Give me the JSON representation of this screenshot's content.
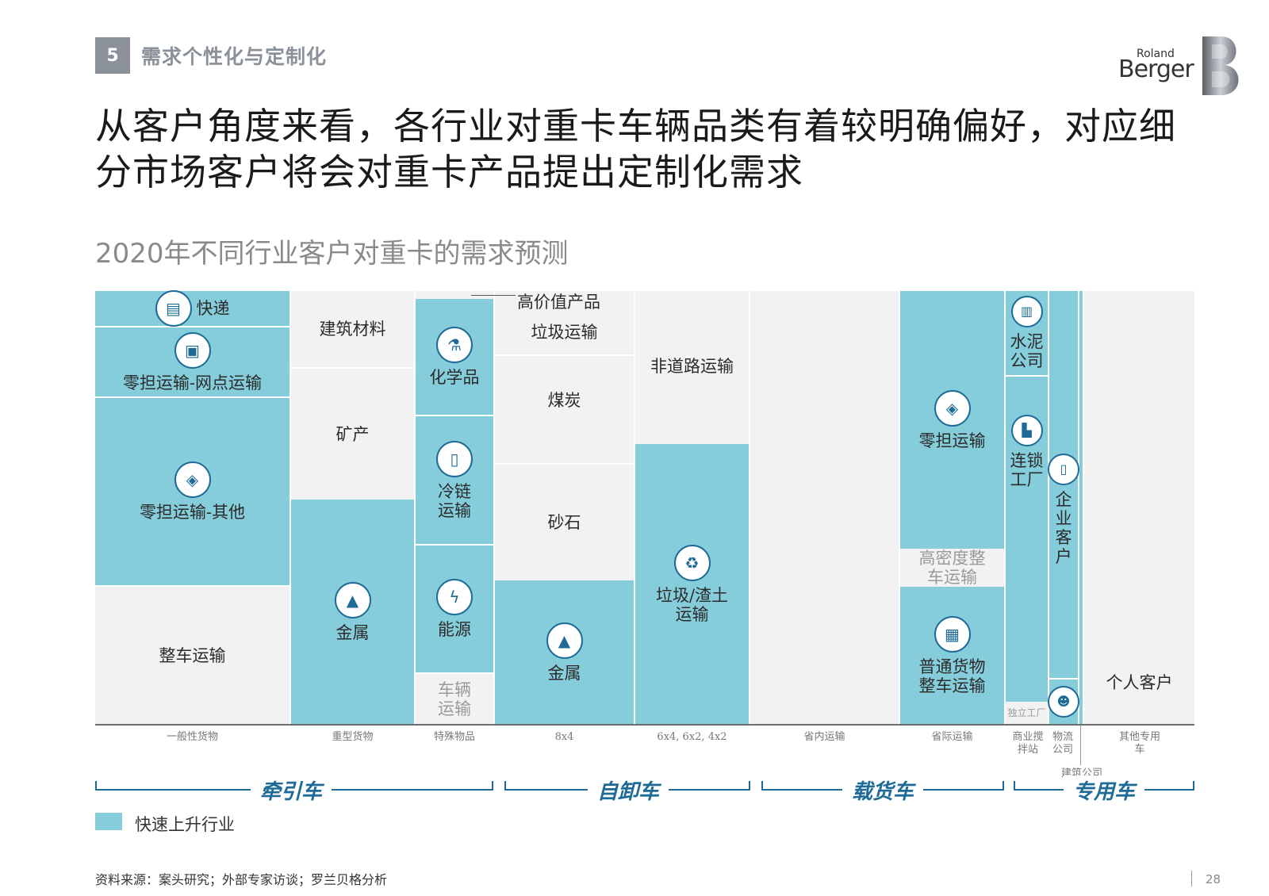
{
  "section": {
    "number": "5",
    "title": "需求个性化与定制化"
  },
  "logo": {
    "line1": "Roland",
    "line2": "Berger"
  },
  "headline": "从客户角度来看，各行业对重卡车辆品类有着较明确偏好，对应细分市场客户将会对重卡产品提出定制化需求",
  "chart_title": "2020年不同行业客户对重卡的需求预测",
  "cells": {
    "kuaidi": "快递",
    "lingdan_wangdian": "零担运输-网点运输",
    "lingdan_qita": "零担运输-其他",
    "zhengche": "整车运输",
    "jianzhu_cailiao": "建筑材料",
    "kuangchan": "矿产",
    "jinshu1": "金属",
    "gaojiazhi": "高价值产品",
    "huaxuepin": "化学品",
    "lenglian": "冷链运输",
    "nengyuan": "能源",
    "cheliang": "车辆运输",
    "laji1": "垃圾运输",
    "meitan": "煤炭",
    "shashi": "砂石",
    "jinshu2": "金属",
    "feidaolu": "非道路运输",
    "laji_zhatu": "垃圾/渣土运输",
    "lingdan_yunshu": "零担运输",
    "gaomidu": "高密度整车运输",
    "putong": "普通货物整车运输",
    "shuini": "水泥公司",
    "liansuo": "连锁工厂",
    "duli": "独立工厂",
    "qiye": "企业客户",
    "geren": "个人客户"
  },
  "x_labels": {
    "general": "一般性货物",
    "heavy": "重型货物",
    "special": "特殊物品",
    "x8x4": "8x4",
    "x6x4": "6x4, 6x2, 4x2",
    "intra": "省内运输",
    "inter": "省际运输",
    "mixing": "商业搅拌站",
    "logistics": "物流公司",
    "construction": "建筑公司",
    "other": "其他专用车"
  },
  "brackets": {
    "tractor": "牵引车",
    "dump": "自卸车",
    "cargo": "载货车",
    "special": "专用车"
  },
  "legend": "快速上升行业",
  "source": "资料来源：案头研究；外部专家访谈；罗兰贝格分析",
  "page_number": "28",
  "colors": {
    "teal": "#86cddb",
    "grey": "#f2f2f2",
    "brand_blue": "#1d6b96"
  },
  "icons": {
    "express": "delivery-icon",
    "truck": "truck-icon",
    "box": "box-icon",
    "gold": "gold-bars-icon",
    "flask": "flask-icon",
    "fridge": "fridge-icon",
    "battery": "battery-icon",
    "recycle": "recycle-icon",
    "cart": "cart-icon",
    "building": "building-icon",
    "factory": "factory-icon",
    "person": "person-icon"
  }
}
